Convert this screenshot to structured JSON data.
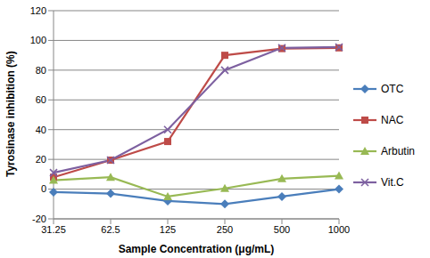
{
  "chart_data": {
    "type": "line",
    "x_label": "Sample Concentration (μg/mL)",
    "y_label": "Tyrosinase inhibition (%)",
    "categories": [
      "31.25",
      "62.5",
      "125",
      "250",
      "500",
      "1000"
    ],
    "series": [
      {
        "name": "OTC",
        "color": "#4a7ebb",
        "marker": "diamond",
        "values": [
          -2,
          -3,
          -8,
          -10,
          -5,
          0
        ]
      },
      {
        "name": "NAC",
        "color": "#be4b48",
        "marker": "square",
        "values": [
          8,
          19.5,
          32,
          90,
          94.5,
          95
        ]
      },
      {
        "name": "Arbutin",
        "color": "#98b954",
        "marker": "triangle",
        "values": [
          6,
          8,
          -5,
          0.5,
          7,
          9
        ]
      },
      {
        "name": "Vit.C",
        "color": "#7d60a0",
        "marker": "x",
        "values": [
          11,
          19.5,
          40,
          80,
          95,
          95.5
        ]
      }
    ],
    "ylim": [
      -20,
      120
    ],
    "yticks": [
      -20,
      0,
      20,
      40,
      60,
      80,
      100,
      120
    ],
    "grid": true,
    "legend": "right"
  }
}
